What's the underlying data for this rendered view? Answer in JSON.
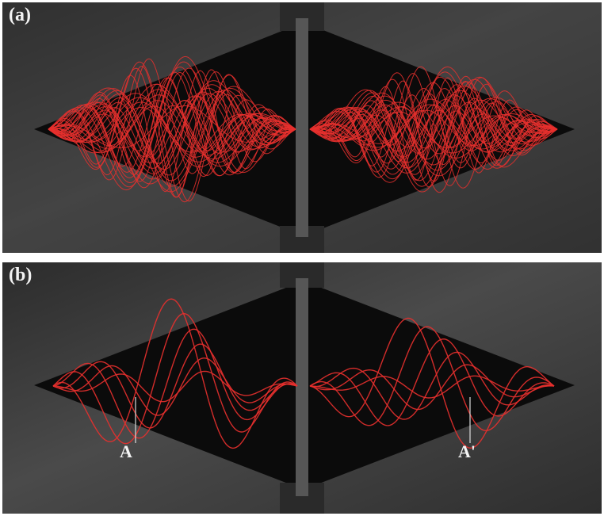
{
  "panels": [
    {
      "label": "(a)"
    },
    {
      "label": "(b)",
      "markers": [
        "A",
        "A'"
      ]
    }
  ],
  "colors": {
    "trace": "#e8302e",
    "chamber": "#0b0b0b",
    "metal": "#3b3b3b",
    "background": "#ffffff"
  }
}
